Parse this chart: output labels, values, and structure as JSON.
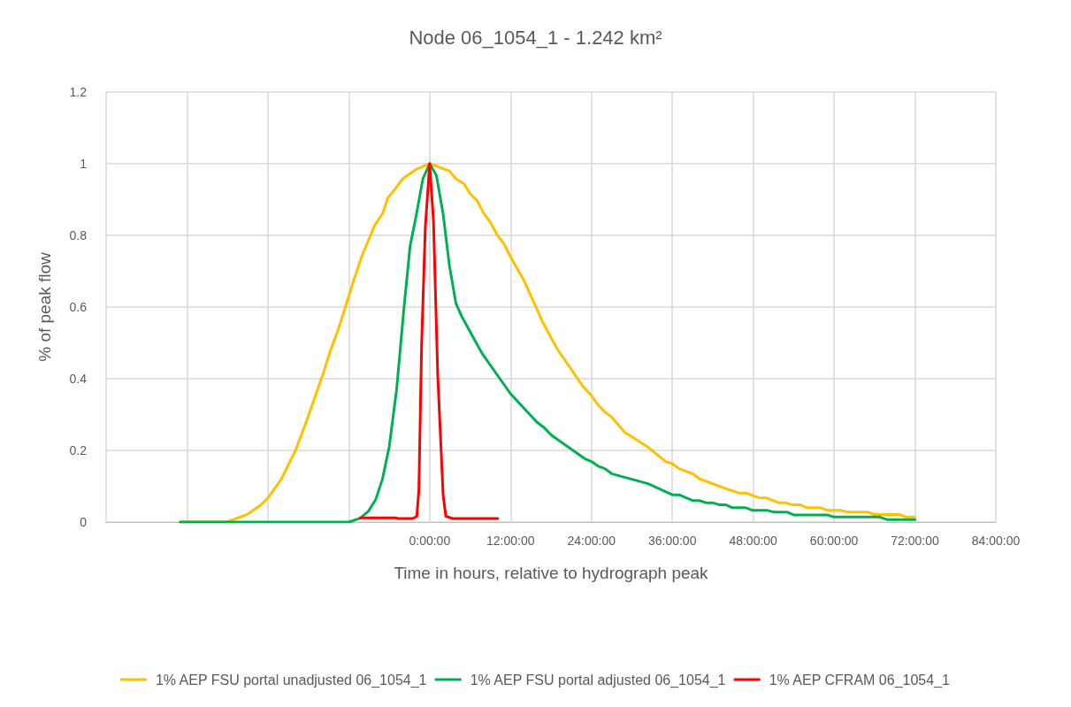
{
  "chart_data": {
    "type": "line",
    "title": "Node 06_1054_1 - 1.242 km²",
    "xlabel": "Time in hours, relative to hydrograph peak",
    "ylabel": "% of peak flow",
    "xlim": [
      -48,
      84
    ],
    "xticks": [
      {
        "value": -48,
        "label": null
      },
      {
        "value": -36,
        "label": null
      },
      {
        "value": -24,
        "label": null
      },
      {
        "value": -12,
        "label": null
      },
      {
        "value": 0,
        "label": "0:00:00"
      },
      {
        "value": 12,
        "label": "12:00:00"
      },
      {
        "value": 24,
        "label": "24:00:00"
      },
      {
        "value": 36,
        "label": "36:00:00"
      },
      {
        "value": 48,
        "label": "48:00:00"
      },
      {
        "value": 60,
        "label": "60:00:00"
      },
      {
        "value": 72,
        "label": "72:00:00"
      },
      {
        "value": 84,
        "label": "84:00:00"
      }
    ],
    "ylim": [
      0,
      1.2
    ],
    "yticks": [
      0,
      0.2,
      0.4,
      0.6,
      0.8,
      1,
      1.2
    ],
    "grid": true,
    "legend": "bottom",
    "marker": "none",
    "line_style": "solid",
    "series": [
      {
        "name": "1% AEP FSU portal unadjusted 06_1054_1",
        "color": "#ffc000",
        "x": [
          -37,
          -30.1,
          -27,
          -25.1,
          -24,
          -22,
          -21,
          -19.9,
          -18.3,
          -17,
          -15.7,
          -14.7,
          -13.6,
          -12.5,
          -11.4,
          -10.1,
          -9,
          -8.1,
          -7,
          -6.2,
          -5.1,
          -4,
          -2,
          0,
          2.9,
          3.9,
          5.1,
          6,
          7,
          8,
          9,
          10,
          11,
          12,
          14,
          16.9,
          18.9,
          22.8,
          24,
          25,
          26,
          27,
          28.9,
          32.4,
          35,
          36,
          37,
          39,
          40,
          44,
          45.9,
          46.9,
          48.8,
          50,
          51.8,
          52.8,
          53.8,
          55,
          56,
          58,
          59,
          61,
          62,
          65,
          65.9,
          69.7,
          70.7,
          72
        ],
        "values": [
          0,
          0,
          0.022,
          0.047,
          0.067,
          0.12,
          0.158,
          0.2,
          0.28,
          0.35,
          0.42,
          0.48,
          0.535,
          0.6,
          0.667,
          0.74,
          0.79,
          0.83,
          0.86,
          0.905,
          0.93,
          0.958,
          0.984,
          1,
          0.98,
          0.958,
          0.944,
          0.916,
          0.898,
          0.862,
          0.837,
          0.802,
          0.777,
          0.74,
          0.674,
          0.553,
          0.484,
          0.377,
          0.353,
          0.326,
          0.307,
          0.293,
          0.251,
          0.209,
          0.169,
          0.163,
          0.149,
          0.135,
          0.121,
          0.093,
          0.081,
          0.081,
          0.068,
          0.067,
          0.054,
          0.054,
          0.048,
          0.048,
          0.04,
          0.04,
          0.033,
          0.033,
          0.028,
          0.028,
          0.021,
          0.021,
          0.014,
          0.014
        ]
      },
      {
        "name": "1% AEP FSU portal adjusted 06_1054_1",
        "color": "#00b050",
        "x": [
          -37,
          -12,
          -10.3,
          -9.1,
          -8,
          -7,
          -6,
          -4.9,
          -3.8,
          -2.9,
          -2,
          -1,
          0,
          1,
          2,
          2.9,
          3.9,
          4.8,
          7.8,
          12,
          15.9,
          16.9,
          18.1,
          23,
          24,
          25,
          26,
          27,
          32.4,
          36,
          37,
          39,
          40,
          41,
          42,
          43,
          44,
          44.9,
          46.9,
          47.9,
          50,
          51,
          53,
          54,
          59,
          60,
          66.8,
          67.8,
          72
        ],
        "values": [
          0,
          0,
          0.011,
          0.03,
          0.063,
          0.12,
          0.21,
          0.37,
          0.6,
          0.77,
          0.855,
          0.958,
          1,
          0.967,
          0.86,
          0.72,
          0.61,
          0.572,
          0.47,
          0.358,
          0.279,
          0.265,
          0.242,
          0.177,
          0.169,
          0.156,
          0.149,
          0.135,
          0.107,
          0.076,
          0.076,
          0.06,
          0.06,
          0.054,
          0.054,
          0.048,
          0.048,
          0.04,
          0.04,
          0.033,
          0.033,
          0.028,
          0.028,
          0.02,
          0.02,
          0.014,
          0.014,
          0.007,
          0.007
        ]
      },
      {
        "name": "1% AEP CFRAM 06_1054_1",
        "color": "#ff0000",
        "x": [
          -10.3,
          -5.1,
          -4.7,
          -2.5,
          -1.9,
          -1.6,
          -1.2,
          -0.65,
          0,
          0.57,
          1.2,
          2,
          2.4,
          3.4,
          10.1
        ],
        "values": [
          0.012,
          0.012,
          0.01,
          0.01,
          0.016,
          0.09,
          0.49,
          0.82,
          1,
          0.84,
          0.41,
          0.075,
          0.016,
          0.01,
          0.01
        ]
      }
    ]
  }
}
